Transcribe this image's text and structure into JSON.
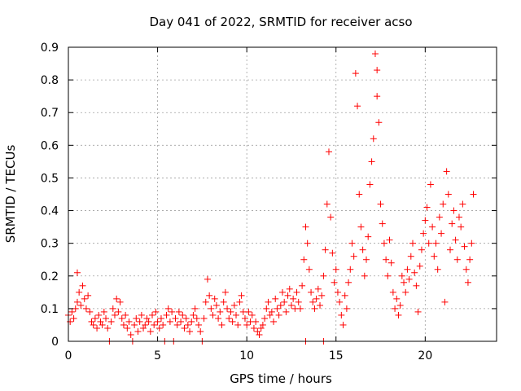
{
  "chart_data": {
    "type": "scatter",
    "title": "Day 041 of 2022, SRMTID for receiver acso",
    "xlabel": "GPS time / hours",
    "ylabel": "SRMTID / TECUs",
    "xlim": [
      0,
      24
    ],
    "ylim": [
      0,
      0.9
    ],
    "xticks": [
      0,
      5,
      10,
      15,
      20
    ],
    "yticks": [
      0,
      0.1,
      0.2,
      0.3,
      0.4,
      0.5,
      0.6,
      0.7,
      0.8,
      0.9
    ],
    "grid": true,
    "marker": "+",
    "color": "#ff0000",
    "series": [
      {
        "name": "acso",
        "points": [
          [
            0.0,
            0.08
          ],
          [
            0.1,
            0.06
          ],
          [
            0.2,
            0.09
          ],
          [
            0.3,
            0.07
          ],
          [
            0.4,
            0.1
          ],
          [
            0.5,
            0.12
          ],
          [
            0.5,
            0.21
          ],
          [
            0.6,
            0.15
          ],
          [
            0.7,
            0.11
          ],
          [
            0.8,
            0.17
          ],
          [
            0.9,
            0.13
          ],
          [
            1.0,
            0.1
          ],
          [
            1.1,
            0.14
          ],
          [
            1.2,
            0.09
          ],
          [
            1.3,
            0.06
          ],
          [
            1.4,
            0.05
          ],
          [
            1.5,
            0.07
          ],
          [
            1.6,
            0.04
          ],
          [
            1.7,
            0.08
          ],
          [
            1.8,
            0.06
          ],
          [
            1.9,
            0.05
          ],
          [
            2.0,
            0.09
          ],
          [
            2.1,
            0.07
          ],
          [
            2.2,
            0.04
          ],
          [
            2.3,
            0.0
          ],
          [
            2.4,
            0.06
          ],
          [
            2.5,
            0.1
          ],
          [
            2.6,
            0.08
          ],
          [
            2.7,
            0.13
          ],
          [
            2.8,
            0.09
          ],
          [
            2.9,
            0.12
          ],
          [
            3.0,
            0.07
          ],
          [
            3.1,
            0.05
          ],
          [
            3.2,
            0.08
          ],
          [
            3.3,
            0.04
          ],
          [
            3.4,
            0.06
          ],
          [
            3.5,
            0.02
          ],
          [
            3.6,
            0.0
          ],
          [
            3.7,
            0.05
          ],
          [
            3.8,
            0.07
          ],
          [
            3.9,
            0.03
          ],
          [
            4.0,
            0.06
          ],
          [
            4.1,
            0.08
          ],
          [
            4.2,
            0.04
          ],
          [
            4.3,
            0.05
          ],
          [
            4.4,
            0.07
          ],
          [
            4.5,
            0.06
          ],
          [
            4.6,
            0.03
          ],
          [
            4.7,
            0.08
          ],
          [
            4.8,
            0.05
          ],
          [
            4.9,
            0.09
          ],
          [
            5.0,
            0.06
          ],
          [
            5.1,
            0.04
          ],
          [
            5.2,
            0.07
          ],
          [
            5.3,
            0.05
          ],
          [
            5.4,
            0.0
          ],
          [
            5.5,
            0.08
          ],
          [
            5.6,
            0.1
          ],
          [
            5.7,
            0.06
          ],
          [
            5.8,
            0.09
          ],
          [
            5.9,
            0.0
          ],
          [
            6.0,
            0.07
          ],
          [
            6.1,
            0.05
          ],
          [
            6.2,
            0.09
          ],
          [
            6.3,
            0.06
          ],
          [
            6.4,
            0.08
          ],
          [
            6.5,
            0.04
          ],
          [
            6.6,
            0.07
          ],
          [
            6.7,
            0.05
          ],
          [
            6.8,
            0.03
          ],
          [
            6.9,
            0.06
          ],
          [
            7.0,
            0.08
          ],
          [
            7.1,
            0.1
          ],
          [
            7.2,
            0.07
          ],
          [
            7.3,
            0.05
          ],
          [
            7.4,
            0.03
          ],
          [
            7.5,
            0.0
          ],
          [
            7.6,
            0.07
          ],
          [
            7.7,
            0.12
          ],
          [
            7.8,
            0.19
          ],
          [
            7.9,
            0.14
          ],
          [
            8.0,
            0.1
          ],
          [
            8.1,
            0.08
          ],
          [
            8.2,
            0.13
          ],
          [
            8.3,
            0.11
          ],
          [
            8.4,
            0.07
          ],
          [
            8.5,
            0.09
          ],
          [
            8.6,
            0.05
          ],
          [
            8.7,
            0.12
          ],
          [
            8.8,
            0.15
          ],
          [
            8.9,
            0.1
          ],
          [
            9.0,
            0.07
          ],
          [
            9.1,
            0.09
          ],
          [
            9.2,
            0.06
          ],
          [
            9.3,
            0.11
          ],
          [
            9.4,
            0.08
          ],
          [
            9.5,
            0.05
          ],
          [
            9.6,
            0.12
          ],
          [
            9.7,
            0.14
          ],
          [
            9.8,
            0.09
          ],
          [
            9.9,
            0.07
          ],
          [
            10.0,
            0.05
          ],
          [
            10.1,
            0.09
          ],
          [
            10.2,
            0.06
          ],
          [
            10.3,
            0.08
          ],
          [
            10.4,
            0.04
          ],
          [
            10.5,
            0.06
          ],
          [
            10.6,
            0.03
          ],
          [
            10.7,
            0.02
          ],
          [
            10.8,
            0.04
          ],
          [
            10.9,
            0.05
          ],
          [
            11.0,
            0.07
          ],
          [
            11.1,
            0.1
          ],
          [
            11.2,
            0.12
          ],
          [
            11.3,
            0.08
          ],
          [
            11.4,
            0.09
          ],
          [
            11.5,
            0.06
          ],
          [
            11.6,
            0.13
          ],
          [
            11.7,
            0.1
          ],
          [
            11.8,
            0.08
          ],
          [
            11.9,
            0.11
          ],
          [
            12.0,
            0.15
          ],
          [
            12.1,
            0.12
          ],
          [
            12.2,
            0.09
          ],
          [
            12.3,
            0.14
          ],
          [
            12.4,
            0.16
          ],
          [
            12.5,
            0.11
          ],
          [
            12.6,
            0.13
          ],
          [
            12.7,
            0.1
          ],
          [
            12.8,
            0.15
          ],
          [
            12.9,
            0.12
          ],
          [
            13.0,
            0.1
          ],
          [
            13.1,
            0.17
          ],
          [
            13.2,
            0.25
          ],
          [
            13.3,
            0.35
          ],
          [
            13.3,
            0.0
          ],
          [
            13.4,
            0.3
          ],
          [
            13.5,
            0.22
          ],
          [
            13.6,
            0.15
          ],
          [
            13.7,
            0.12
          ],
          [
            13.8,
            0.1
          ],
          [
            13.9,
            0.13
          ],
          [
            14.0,
            0.16
          ],
          [
            14.1,
            0.11
          ],
          [
            14.2,
            0.14
          ],
          [
            14.3,
            0.2
          ],
          [
            14.3,
            0.0
          ],
          [
            14.4,
            0.28
          ],
          [
            14.5,
            0.42
          ],
          [
            14.6,
            0.58
          ],
          [
            14.7,
            0.38
          ],
          [
            14.8,
            0.27
          ],
          [
            14.9,
            0.18
          ],
          [
            15.0,
            0.22
          ],
          [
            15.1,
            0.15
          ],
          [
            15.2,
            0.12
          ],
          [
            15.3,
            0.08
          ],
          [
            15.4,
            0.05
          ],
          [
            15.5,
            0.14
          ],
          [
            15.6,
            0.1
          ],
          [
            15.7,
            0.18
          ],
          [
            15.8,
            0.22
          ],
          [
            15.9,
            0.3
          ],
          [
            16.0,
            0.26
          ],
          [
            16.1,
            0.82
          ],
          [
            16.2,
            0.72
          ],
          [
            16.3,
            0.45
          ],
          [
            16.4,
            0.35
          ],
          [
            16.5,
            0.28
          ],
          [
            16.6,
            0.2
          ],
          [
            16.7,
            0.25
          ],
          [
            16.8,
            0.32
          ],
          [
            16.9,
            0.48
          ],
          [
            17.0,
            0.55
          ],
          [
            17.1,
            0.62
          ],
          [
            17.2,
            0.88
          ],
          [
            17.3,
            0.83
          ],
          [
            17.3,
            0.75
          ],
          [
            17.4,
            0.67
          ],
          [
            17.5,
            0.42
          ],
          [
            17.6,
            0.36
          ],
          [
            17.7,
            0.3
          ],
          [
            17.8,
            0.25
          ],
          [
            17.9,
            0.2
          ],
          [
            18.0,
            0.31
          ],
          [
            18.1,
            0.24
          ],
          [
            18.2,
            0.15
          ],
          [
            18.3,
            0.1
          ],
          [
            18.4,
            0.13
          ],
          [
            18.5,
            0.08
          ],
          [
            18.6,
            0.11
          ],
          [
            18.7,
            0.2
          ],
          [
            18.8,
            0.18
          ],
          [
            18.9,
            0.15
          ],
          [
            19.0,
            0.22
          ],
          [
            19.1,
            0.19
          ],
          [
            19.2,
            0.26
          ],
          [
            19.3,
            0.3
          ],
          [
            19.4,
            0.21
          ],
          [
            19.5,
            0.17
          ],
          [
            19.6,
            0.09
          ],
          [
            19.7,
            0.23
          ],
          [
            19.8,
            0.28
          ],
          [
            19.9,
            0.33
          ],
          [
            20.0,
            0.37
          ],
          [
            20.1,
            0.41
          ],
          [
            20.2,
            0.3
          ],
          [
            20.3,
            0.48
          ],
          [
            20.4,
            0.35
          ],
          [
            20.5,
            0.26
          ],
          [
            20.6,
            0.3
          ],
          [
            20.7,
            0.22
          ],
          [
            20.8,
            0.38
          ],
          [
            20.9,
            0.33
          ],
          [
            21.0,
            0.42
          ],
          [
            21.1,
            0.12
          ],
          [
            21.2,
            0.52
          ],
          [
            21.3,
            0.45
          ],
          [
            21.4,
            0.28
          ],
          [
            21.5,
            0.36
          ],
          [
            21.6,
            0.4
          ],
          [
            21.7,
            0.31
          ],
          [
            21.8,
            0.25
          ],
          [
            21.9,
            0.38
          ],
          [
            22.0,
            0.35
          ],
          [
            22.1,
            0.42
          ],
          [
            22.2,
            0.29
          ],
          [
            22.3,
            0.22
          ],
          [
            22.4,
            0.18
          ],
          [
            22.5,
            0.25
          ],
          [
            22.6,
            0.3
          ],
          [
            22.7,
            0.45
          ]
        ]
      }
    ]
  }
}
